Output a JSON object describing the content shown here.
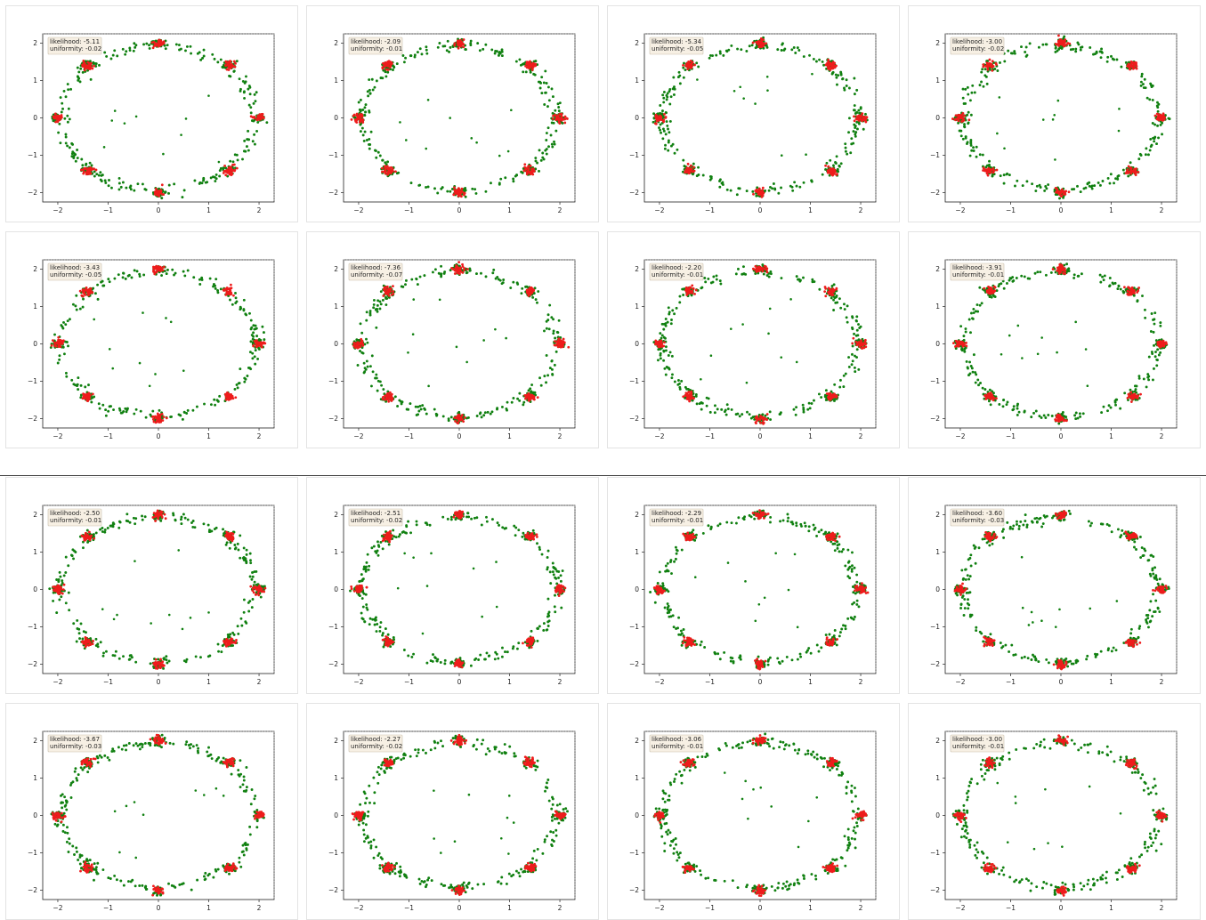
{
  "colors": {
    "generated": "#108010",
    "real": "#ee1c1c",
    "annotation_bg": "#f7f0e4"
  },
  "ticks": {
    "x": [
      -2,
      -1,
      0,
      1,
      2
    ],
    "y": [
      -2,
      -1,
      0,
      1,
      2
    ],
    "xlim": [
      -2.3,
      2.3
    ],
    "ylim": [
      -2.25,
      2.25
    ]
  },
  "chart_data": [
    {
      "type": "scatter",
      "likelihood": "-5.11",
      "uniformity": "-0.02",
      "annotation": [
        "likelihood: -5.11",
        "uniformity: -0.02"
      ],
      "modes_missed": [],
      "seed": 11
    },
    {
      "type": "scatter",
      "likelihood": "-2.09",
      "uniformity": "-0.01",
      "annotation": [
        "likelihood: -2.09",
        "uniformity: -0.01"
      ],
      "modes_missed": [],
      "seed": 12
    },
    {
      "type": "scatter",
      "likelihood": "-5.34",
      "uniformity": "-0.05",
      "annotation": [
        "likelihood: -5.34",
        "uniformity: -0.05"
      ],
      "modes_missed": [],
      "seed": 13
    },
    {
      "type": "scatter",
      "likelihood": "-3.00",
      "uniformity": "-0.02",
      "annotation": [
        "likelihood: -3.00",
        "uniformity: -0.02"
      ],
      "modes_missed": [],
      "seed": 14
    },
    {
      "type": "scatter",
      "likelihood": "-3.43",
      "uniformity": "-0.05",
      "annotation": [
        "likelihood: -3.43",
        "uniformity: -0.05"
      ],
      "modes_missed": [
        1,
        7
      ],
      "seed": 21
    },
    {
      "type": "scatter",
      "likelihood": "-7.36",
      "uniformity": "-0.07",
      "annotation": [
        "likelihood: -7.36",
        "uniformity: -0.07"
      ],
      "modes_missed": [],
      "seed": 22
    },
    {
      "type": "scatter",
      "likelihood": "-2.20",
      "uniformity": "-0.01",
      "annotation": [
        "likelihood: -2.20",
        "uniformity: -0.01"
      ],
      "modes_missed": [],
      "seed": 23
    },
    {
      "type": "scatter",
      "likelihood": "-3.91",
      "uniformity": "-0.01",
      "annotation": [
        "likelihood: -3.91",
        "uniformity: -0.01"
      ],
      "modes_missed": [],
      "seed": 24
    },
    {
      "type": "scatter",
      "likelihood": "-2.50",
      "uniformity": "-0.01",
      "annotation": [
        "likelihood: -2.50",
        "uniformity: -0.01"
      ],
      "modes_missed": [],
      "seed": 31
    },
    {
      "type": "scatter",
      "likelihood": "-2.51",
      "uniformity": "-0.02",
      "annotation": [
        "likelihood: -2.51",
        "uniformity: -0.02"
      ],
      "modes_missed": [],
      "seed": 32
    },
    {
      "type": "scatter",
      "likelihood": "-2.29",
      "uniformity": "-0.01",
      "annotation": [
        "likelihood: -2.29",
        "uniformity: -0.01"
      ],
      "modes_missed": [],
      "seed": 33
    },
    {
      "type": "scatter",
      "likelihood": "-3.60",
      "uniformity": "-0.03",
      "annotation": [
        "likelihood: -3.60",
        "uniformity: -0.03"
      ],
      "modes_missed": [],
      "seed": 34
    },
    {
      "type": "scatter",
      "likelihood": "-3.67",
      "uniformity": "-0.03",
      "annotation": [
        "likelihood: -3.67",
        "uniformity: -0.03"
      ],
      "modes_missed": [],
      "seed": 41
    },
    {
      "type": "scatter",
      "likelihood": "-2.27",
      "uniformity": "-0.02",
      "annotation": [
        "likelihood: -2.27",
        "uniformity: -0.02"
      ],
      "modes_missed": [],
      "seed": 42
    },
    {
      "type": "scatter",
      "likelihood": "-3.06",
      "uniformity": "-0.01",
      "annotation": [
        "likelihood: -3.06",
        "uniformity: -0.01"
      ],
      "modes_missed": [],
      "seed": 43
    },
    {
      "type": "scatter",
      "likelihood": "-3.00",
      "uniformity": "-0.01",
      "annotation": [
        "likelihood: -3.00",
        "uniformity: -0.01"
      ],
      "modes_missed": [],
      "seed": 44
    }
  ]
}
